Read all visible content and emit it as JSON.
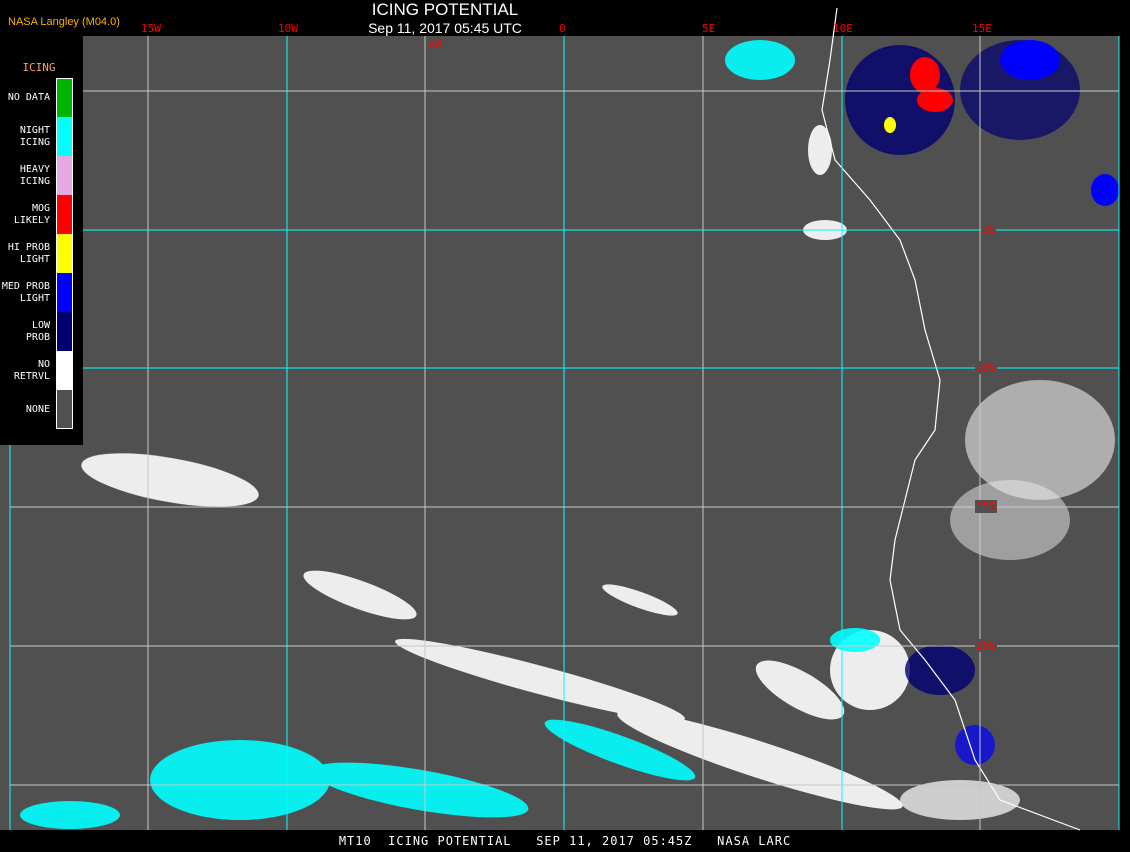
{
  "header": {
    "title": "ICING POTENTIAL",
    "subtitle": "Sep 11, 2017 05:45 UTC",
    "credit": "NASA Langley (M04.0)"
  },
  "map": {
    "longitude_labels": [
      "15W",
      "10W",
      "5W",
      "0",
      "5E",
      "10E",
      "15E"
    ],
    "latitude_labels": [
      "5S",
      "10S",
      "15S",
      "20S"
    ],
    "background_color": "#505050",
    "grid_colors": [
      "#00ffff",
      "#c8c8c8"
    ]
  },
  "legend": {
    "title": "ICING",
    "items": [
      {
        "label": "NO DATA",
        "color": "#00b400"
      },
      {
        "label": "NIGHT\nICING",
        "color": "#00ffff"
      },
      {
        "label": "HEAVY\nICING",
        "color": "#e6a8e0"
      },
      {
        "label": "MOG\nLIKELY",
        "color": "#ff0000"
      },
      {
        "label": "HI PROB\nLIGHT",
        "color": "#ffff00"
      },
      {
        "label": "MED PROB\nLIGHT",
        "color": "#0000ff"
      },
      {
        "label": "LOW\nPROB",
        "color": "#000070"
      },
      {
        "label": "NO\nRETRVL",
        "color": "#ffffff"
      },
      {
        "label": "NONE",
        "color": "#505050"
      }
    ]
  },
  "footer": {
    "text": "MT10  ICING POTENTIAL   SEP 11, 2017 05:45Z   NASA LARC"
  }
}
